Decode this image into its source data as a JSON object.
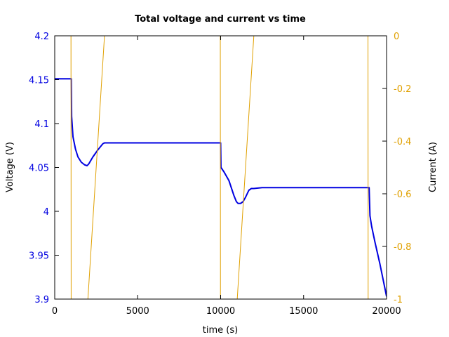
{
  "chart_data": {
    "type": "line",
    "title": "Total voltage and current vs time",
    "xlabel": "time (s)",
    "ylabel": "Voltage (V)",
    "y2label": "Current (A)",
    "xlim": [
      0,
      20000
    ],
    "ylim": [
      3.9,
      4.2
    ],
    "y2lim": [
      -1,
      0
    ],
    "xticks": [
      0,
      5000,
      10000,
      15000,
      20000
    ],
    "xtick_labels": [
      "0",
      "5000",
      "10000",
      "15000",
      "20000"
    ],
    "yticks": [
      3.9,
      3.95,
      4.0,
      4.05,
      4.1,
      4.15,
      4.2
    ],
    "ytick_labels": [
      "3.9",
      "3.95",
      "4",
      "4.05",
      "4.1",
      "4.15",
      "4.2"
    ],
    "y2ticks": [
      -1,
      -0.8,
      -0.6,
      -0.4,
      -0.2,
      0
    ],
    "y2tick_labels": [
      "-1",
      "-0.8",
      "-0.6",
      "-0.4",
      "-0.2",
      "0"
    ],
    "grid": false,
    "colors": {
      "voltage": "#0000e0",
      "current": "#e0a000",
      "left_axis_ticks": "#0000e0",
      "right_axis_ticks": "#e0a000",
      "frame": "#000000"
    },
    "series": [
      {
        "axis": "left",
        "x": [
          0,
          950,
          1000,
          1020,
          1100,
          1250,
          1400,
          1600,
          1800,
          1950,
          2050,
          2300,
          2600,
          2900,
          3000,
          3200,
          5000,
          8000,
          9950,
          10000,
          10020,
          10200,
          10500,
          10800,
          10950,
          11050,
          11200,
          11350,
          11500,
          11700,
          11850,
          12000,
          12500,
          15000,
          18900,
          18950,
          19000,
          19100,
          19300,
          19600,
          20000
        ],
        "y": [
          4.151,
          4.151,
          4.151,
          4.108,
          4.085,
          4.071,
          4.062,
          4.056,
          4.053,
          4.052,
          4.054,
          4.062,
          4.07,
          4.077,
          4.078,
          4.078,
          4.078,
          4.078,
          4.078,
          4.078,
          4.05,
          4.045,
          4.035,
          4.018,
          4.011,
          4.009,
          4.009,
          4.011,
          4.016,
          4.024,
          4.026,
          4.026,
          4.027,
          4.027,
          4.027,
          4.027,
          3.995,
          3.983,
          3.965,
          3.94,
          3.903
        ]
      },
      {
        "axis": "right",
        "x": [
          0,
          980,
          990,
          1000,
          1010,
          1990,
          2000,
          3000,
          9980,
          9990,
          10000,
          10010,
          10990,
          11000,
          12000,
          18880,
          18890,
          18900,
          18910,
          19900,
          20000
        ],
        "y": [
          0,
          0,
          -1,
          -1,
          -1,
          -1,
          -1,
          0,
          0,
          -1,
          -1,
          -1,
          -1,
          -1,
          0,
          0,
          -1,
          -1,
          -1,
          -1,
          -1
        ]
      }
    ]
  }
}
